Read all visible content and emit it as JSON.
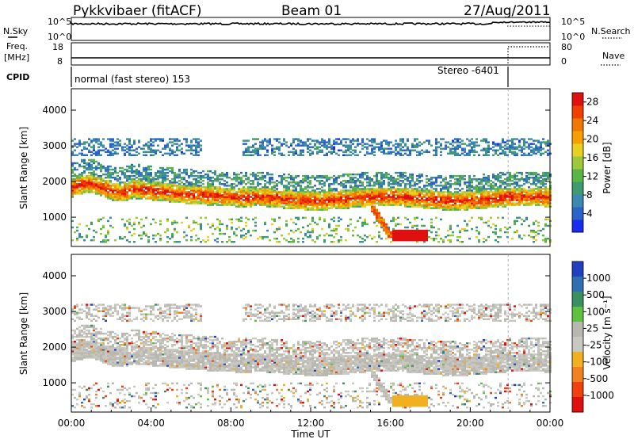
{
  "header": {
    "station": "Pykkvibaer (fitACF)",
    "beam": "Beam 01",
    "date": "27/Aug/2011"
  },
  "panels": {
    "noise": {
      "left_label": "N.Sky",
      "right_label": "N.Search",
      "left_ticks": [
        "10^5",
        "10^0"
      ],
      "right_ticks": [
        "10^5",
        "10^0"
      ]
    },
    "freq": {
      "left_label_line1": "Freq.",
      "left_label_line2": "[MHz]",
      "right_label": "Nave",
      "left_ticks": [
        "18",
        "8"
      ],
      "right_ticks": [
        "80",
        "0"
      ]
    },
    "cpid": {
      "label": "CPID",
      "mode1": "normal (fast stereo) 153",
      "mode2": "Stereo -6401"
    }
  },
  "chart_data": [
    {
      "type": "heatmap",
      "name_panel": "power",
      "ylabel": "Slant Range [km]",
      "yticks": [
        "1000",
        "2000",
        "3000",
        "4000"
      ],
      "ylim": [
        180,
        4600
      ],
      "xlim": [
        0,
        24
      ],
      "colorbar": {
        "label": "Power [dB]",
        "ticks": [
          "4",
          "8",
          "12",
          "16",
          "20",
          "24",
          "28"
        ],
        "colors": [
          "#1a2cf0",
          "#2a64c8",
          "#3b88b0",
          "#3f9a70",
          "#5ab545",
          "#9cc83a",
          "#e8d020",
          "#f5a000",
          "#f07800",
          "#f04000",
          "#e01010"
        ]
      },
      "echo_bands": [
        {
          "desc": "upper scatter",
          "start_h": 0.0,
          "end_h": 24.0,
          "range_km": [
            2700,
            3200
          ],
          "level": "low"
        },
        {
          "desc": "main layer",
          "start_h": 0.0,
          "end_h": 24.0,
          "range_km": [
            1300,
            2400
          ],
          "level": "high"
        },
        {
          "desc": "near-range echo",
          "start_h": 16.0,
          "end_h": 17.8,
          "range_km": [
            300,
            700
          ],
          "level": "high"
        },
        {
          "desc": "lower scatter",
          "start_h": 0.0,
          "end_h": 24.0,
          "range_km": [
            300,
            1000
          ],
          "level": "mid"
        }
      ]
    },
    {
      "type": "heatmap",
      "name_panel": "velocity",
      "ylabel": "Slant Range [km]",
      "xlabel": "Time UT",
      "yticks": [
        "1000",
        "2000",
        "3000",
        "4000"
      ],
      "ylim": [
        180,
        4600
      ],
      "xlim": [
        0,
        24
      ],
      "xticks": [
        "00:00",
        "04:00",
        "08:00",
        "12:00",
        "16:00",
        "20:00",
        "00:00"
      ],
      "colorbar": {
        "label": "Velocity [m s^-1]",
        "ticks": [
          "1000",
          "500",
          "100",
          "25",
          "-25",
          "-100",
          "-500",
          "-1000"
        ],
        "colors": [
          "#2040c0",
          "#3070b0",
          "#3c9060",
          "#60c040",
          "#b8b8b0",
          "#c8c8c0",
          "#f0b020",
          "#f08020",
          "#f04010",
          "#e01010"
        ]
      }
    }
  ]
}
